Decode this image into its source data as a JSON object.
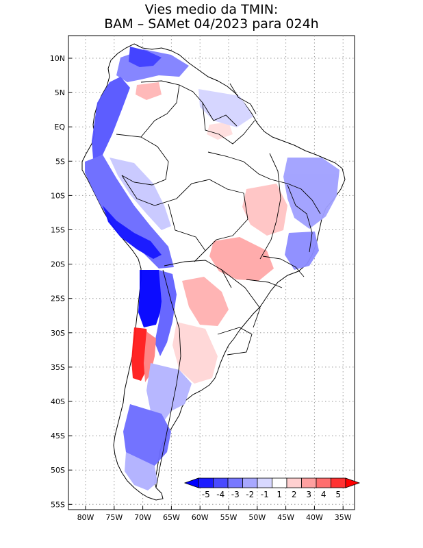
{
  "title": {
    "line1": "Vies medio da TMIN:",
    "line2": "BAM – SAMet 04/2023  para 024h"
  },
  "axes": {
    "lon_ticks": [
      "80W",
      "75W",
      "70W",
      "65W",
      "60W",
      "55W",
      "50W",
      "45W",
      "40W",
      "35W"
    ],
    "lat_ticks": [
      "10N",
      "5N",
      "EQ",
      "5S",
      "10S",
      "15S",
      "20S",
      "25S",
      "30S",
      "35S",
      "40S",
      "45S",
      "50S",
      "55S"
    ]
  },
  "legend": {
    "labels": [
      "-5",
      "-4",
      "-3",
      "-2",
      "-1",
      "1",
      "2",
      "3",
      "4",
      "5"
    ],
    "colors": [
      "#1c1cff",
      "#4a4aff",
      "#7878ff",
      "#a8a8ff",
      "#d8d8ff",
      "#ffffff",
      "#ffd0d0",
      "#ffa0a0",
      "#ff6e6e",
      "#ff3232"
    ],
    "arrow_low_color": "#0000ff",
    "arrow_high_color": "#ff0000"
  },
  "map": {
    "land_base_color": "#ffffff",
    "border_color": "#000000",
    "grid_color": "#9a9a9a"
  }
}
